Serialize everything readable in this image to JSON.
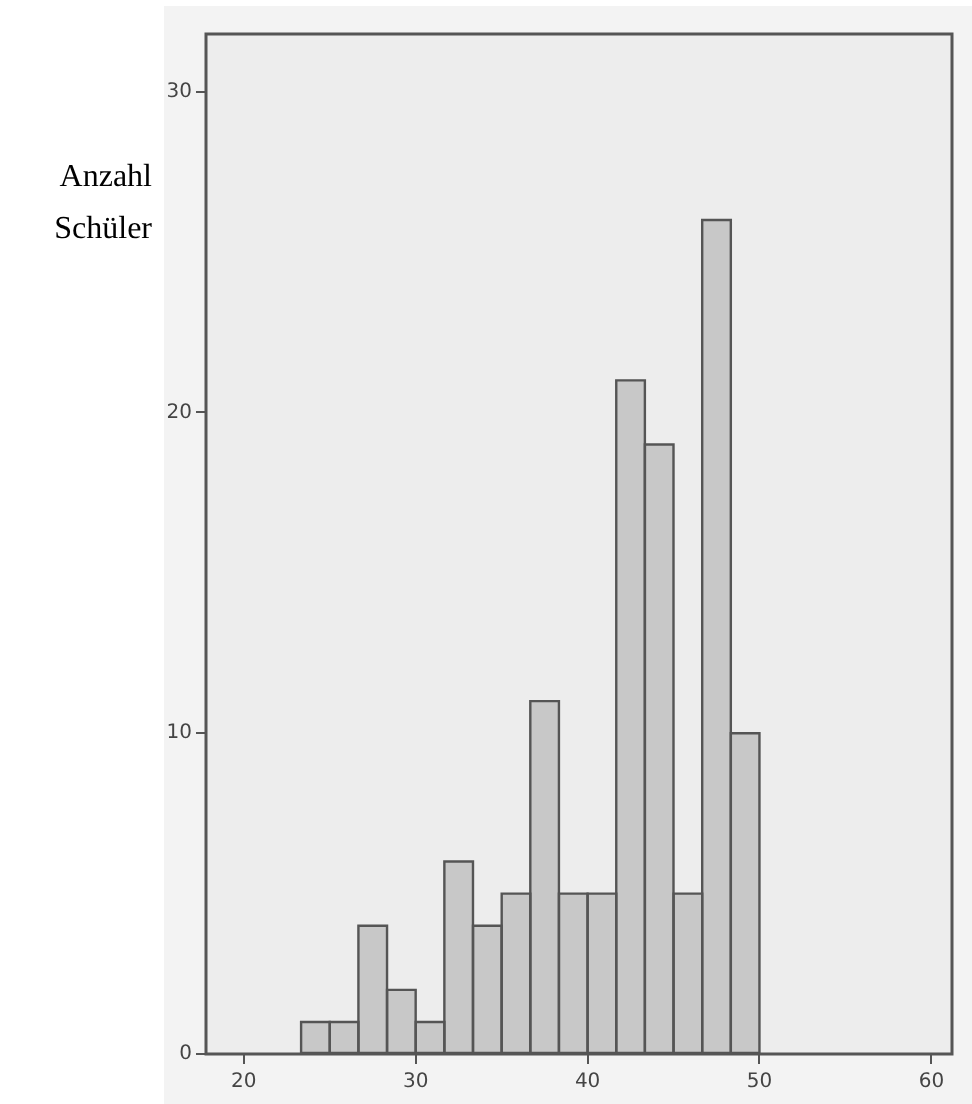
{
  "chart_data": {
    "type": "histogram",
    "ylabel": "Anzahl Schüler",
    "bins": [
      23.33,
      25,
      26.67,
      28.33,
      30,
      31.67,
      33.33,
      35,
      36.67,
      38.33,
      40,
      41.67,
      43.33,
      45,
      46.67,
      48.33,
      50
    ],
    "values": [
      1,
      1,
      4,
      2,
      1,
      6,
      4,
      5,
      11,
      5,
      5,
      21,
      19,
      5,
      26,
      10
    ],
    "color": "#c8c8c8",
    "xlim": [
      17.8,
      61.2
    ],
    "xticks": [
      20,
      30,
      40,
      50,
      60
    ],
    "ylim": [
      0,
      31.8
    ],
    "yticks": [
      0,
      10,
      20,
      30
    ],
    "grid": false,
    "legend": false
  }
}
